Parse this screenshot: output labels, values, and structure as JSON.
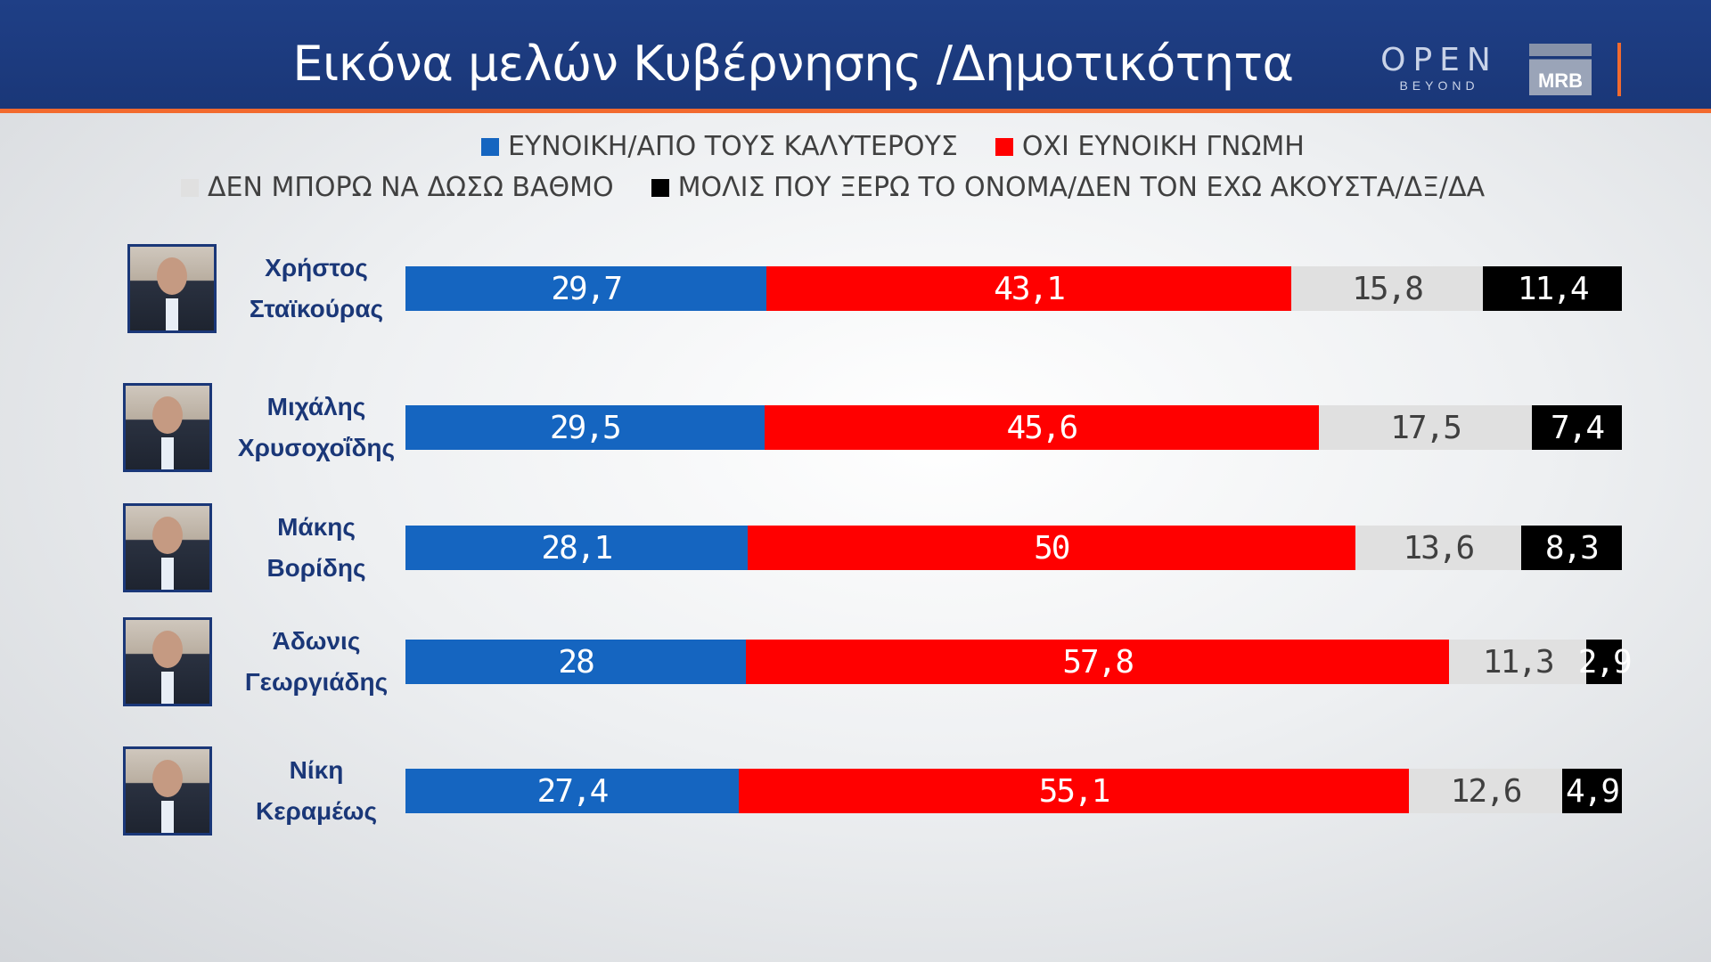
{
  "header": {
    "title": "Εικόνα μελών Κυβέρνησης /Δημοτικότητα",
    "logo_open": "OPEN",
    "logo_beyond": "BEYOND",
    "logo_mrb": "MRB"
  },
  "chart_data": {
    "type": "bar",
    "stacked": true,
    "orientation": "horizontal",
    "colors": {
      "favorable": "#1565c0",
      "unfavorable": "#ff0000",
      "no_rating": "#e0e0e0",
      "unknown": "#000000"
    },
    "series": [
      {
        "key": "favorable",
        "name": "ΕΥΝΟΙΚΗ/ΑΠΟ ΤΟΥΣ ΚΑΛΥΤΕΡΟΥΣ",
        "color": "#1565c0",
        "text_color": "#ffffff",
        "values": [
          29.7,
          29.5,
          28.1,
          28,
          27.4
        ]
      },
      {
        "key": "unfavorable",
        "name": "ΟΧΙ ΕΥΝΟΙΚΗ ΓΝΩΜΗ",
        "color": "#ff0000",
        "text_color": "#ffffff",
        "values": [
          43.1,
          45.6,
          50,
          57.8,
          55.1
        ]
      },
      {
        "key": "no_rating",
        "name": "ΔΕΝ ΜΠΟΡΩ ΝΑ ΔΩΣΩ ΒΑΘΜΟ",
        "color": "#e0e0e0",
        "text_color": "#404040",
        "values": [
          15.8,
          17.5,
          13.6,
          11.3,
          12.6
        ]
      },
      {
        "key": "unknown",
        "name": "ΜΟΛΙΣ ΠΟΥ ΞΕΡΩ ΤΟ ΟΝΟΜΑ/ΔΕΝ ΤΟΝ ΕΧΩ ΑΚΟΥΣΤΑ/ΔΞ/ΔΑ",
        "color": "#000000",
        "text_color": "#ffffff",
        "values": [
          11.4,
          7.4,
          8.3,
          2.9,
          4.9
        ]
      }
    ],
    "value_labels": [
      [
        "29,7",
        "43,1",
        "15,8",
        "11,4"
      ],
      [
        "29,5",
        "45,6",
        "17,5",
        "7,4"
      ],
      [
        "28,1",
        "50",
        "13,6",
        "8,3"
      ],
      [
        "28",
        "57,8",
        "11,3",
        "2,9"
      ],
      [
        "27,4",
        "55,1",
        "12,6",
        "4,9"
      ]
    ],
    "categories": [
      [
        "Χρήστος",
        "Σταϊκούρας"
      ],
      [
        "Μιχάλης",
        "Χρυσοχοΐδης"
      ],
      [
        "Μάκης",
        "Βορίδης"
      ],
      [
        "Άδωνις",
        "Γεωργιάδης"
      ],
      [
        "Νίκη",
        "Κεραμέως"
      ]
    ],
    "xlim": [
      0,
      100
    ],
    "legend_position": "top",
    "grid": false
  }
}
